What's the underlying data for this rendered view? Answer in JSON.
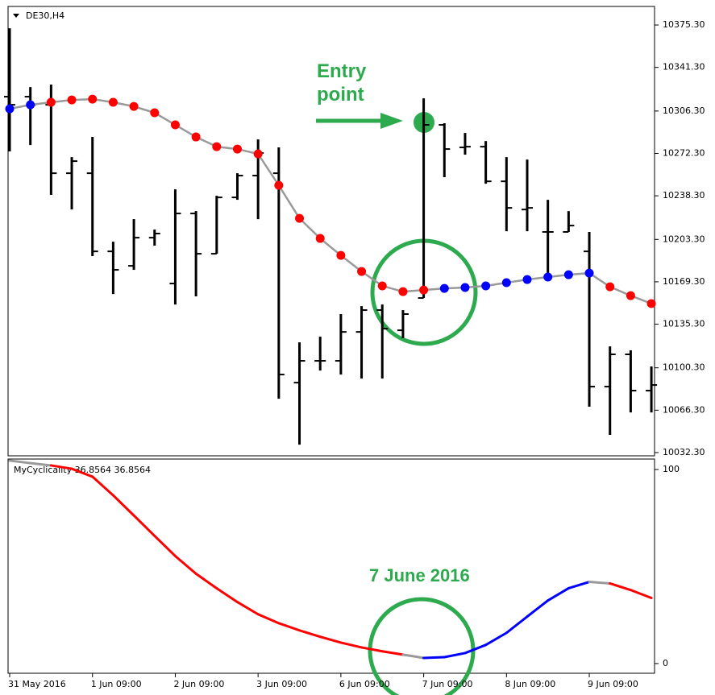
{
  "chart_data": [
    {
      "type": "ohlc",
      "title": "DE30,H4",
      "annotation": "Entry point",
      "open": [
        10317.8,
        10317.8,
        10311.3,
        10256.4,
        10256.4,
        10193.7,
        10182.1,
        10204.7,
        10167.9,
        10224.1,
        10191.8,
        10237.0,
        10254.5,
        10256.4,
        10088.4,
        10105.9,
        10105.9,
        10129.1,
        10146.6,
        10130.4,
        10156.3,
        10295.2,
        10277.1,
        10277.7,
        10249.9,
        10227.3,
        10209.3,
        10209.3,
        10193.7,
        10085.2,
        10111.1,
        10082.0
      ],
      "high": [
        10372.7,
        10325.5,
        10327.5,
        10269.3,
        10285.5,
        10201.5,
        10219.6,
        10211.2,
        10243.5,
        10226.0,
        10238.3,
        10256.4,
        10283.5,
        10277.1,
        10120.7,
        10125.3,
        10143.4,
        10149.8,
        10151.1,
        10146.6,
        10316.5,
        10296.5,
        10288.7,
        10282.2,
        10269.3,
        10267.4,
        10235.1,
        10226.0,
        10209.3,
        10117.5,
        10114.3,
        10101.4
      ],
      "low": [
        10273.9,
        10279.0,
        10239.0,
        10227.3,
        10189.9,
        10159.5,
        10178.9,
        10198.3,
        10151.1,
        10157.6,
        10191.8,
        10235.1,
        10219.6,
        10075.5,
        10038.7,
        10098.1,
        10094.9,
        10091.7,
        10091.7,
        10124.0,
        10156.3,
        10253.2,
        10271.3,
        10248.0,
        10209.9,
        10209.9,
        10174.4,
        10209.3,
        10069.1,
        10046.5,
        10064.5,
        10064.5
      ],
      "close": [
        10311.3,
        10311.3,
        10256.4,
        10266.1,
        10193.7,
        10178.9,
        10204.7,
        10208.0,
        10224.1,
        10191.8,
        10237.0,
        10254.5,
        10272.6,
        10094.9,
        10105.9,
        10105.9,
        10129.1,
        10146.6,
        10131.7,
        10143.4,
        10295.2,
        10275.8,
        10277.7,
        10249.9,
        10228.6,
        10228.6,
        10209.3,
        10214.4,
        10085.2,
        10111.1,
        10082.0,
        10086.5
      ],
      "line": {
        "color": "#999999",
        "values": [
          10308.1,
          10311.3,
          10313.3,
          10315.2,
          10315.8,
          10313.3,
          10310.0,
          10304.9,
          10295.2,
          10285.5,
          10277.7,
          10275.8,
          10271.9,
          10246.7,
          10220.2,
          10204.1,
          10190.5,
          10177.6,
          10166.0,
          10161.4,
          10162.7,
          10164.0,
          10164.7,
          10166.0,
          10168.6,
          10171.1,
          10173.1,
          10175.0,
          10176.3,
          10165.3,
          10158.2,
          10151.8
        ],
        "colors": [
          "#0000ff",
          "#0000ff",
          "#ff0000",
          "#ff0000",
          "#ff0000",
          "#ff0000",
          "#ff0000",
          "#ff0000",
          "#ff0000",
          "#ff0000",
          "#ff0000",
          "#ff0000",
          "#ff0000",
          "#ff0000",
          "#ff0000",
          "#ff0000",
          "#ff0000",
          "#ff0000",
          "#ff0000",
          "#ff0000",
          "#ff0000",
          "#0000ff",
          "#0000ff",
          "#0000ff",
          "#0000ff",
          "#0000ff",
          "#0000ff",
          "#0000ff",
          "#0000ff",
          "#ff0000",
          "#ff0000",
          "#ff0000"
        ]
      },
      "ylim": [
        10029.7,
        10390.2
      ],
      "yticks": [
        {
          "value": 10375.3,
          "label": "10375.30"
        },
        {
          "value": 10341.3,
          "label": "10341.30"
        },
        {
          "value": 10306.3,
          "label": "10306.30"
        },
        {
          "value": 10272.3,
          "label": "10272.30"
        },
        {
          "value": 10238.3,
          "label": "10238.30"
        },
        {
          "value": 10203.3,
          "label": "10203.30"
        },
        {
          "value": 10169.3,
          "label": "10169.30"
        },
        {
          "value": 10135.3,
          "label": "10135.30"
        },
        {
          "value": 10100.3,
          "label": "10100.30"
        },
        {
          "value": 10066.3,
          "label": "10066.30"
        },
        {
          "value": 10032.3,
          "label": "10032.30"
        }
      ]
    },
    {
      "type": "line",
      "title": "MyCyclicality 36.8564 36.8564",
      "annotation": "7 June 2016",
      "categories": [
        "31 May 2016",
        null,
        null,
        null,
        "1 Jun 09:00",
        null,
        null,
        null,
        "2 Jun 09:00",
        null,
        null,
        null,
        "3 Jun 09:00",
        null,
        null,
        null,
        "6 Jun 09:00",
        null,
        null,
        null,
        "7 Jun 09:00",
        null,
        null,
        null,
        "8 Jun 09:00",
        null,
        null,
        null,
        "9 Jun 09:00",
        null,
        null,
        null
      ],
      "values": [
        104.6,
        103.3,
        102.1,
        100.4,
        96.3,
        86.7,
        76.3,
        65.8,
        55.4,
        46.3,
        38.8,
        31.7,
        25.4,
        20.8,
        17.1,
        13.8,
        10.8,
        8.3,
        6.3,
        4.6,
        2.9,
        3.3,
        5.4,
        9.6,
        15.8,
        24.2,
        32.5,
        38.8,
        42.1,
        41.3,
        37.9,
        33.8
      ],
      "colors": [
        "#999999",
        "#999999",
        "#ff0000",
        "#ff0000",
        "#ff0000",
        "#ff0000",
        "#ff0000",
        "#ff0000",
        "#ff0000",
        "#ff0000",
        "#ff0000",
        "#ff0000",
        "#ff0000",
        "#ff0000",
        "#ff0000",
        "#ff0000",
        "#ff0000",
        "#ff0000",
        "#ff0000",
        "#999999",
        "#0000ff",
        "#0000ff",
        "#0000ff",
        "#0000ff",
        "#0000ff",
        "#0000ff",
        "#0000ff",
        "#0000ff",
        "#999999",
        "#ff0000",
        "#ff0000",
        "#ff0000"
      ],
      "ylim": [
        -5,
        105.4
      ],
      "yticks": [
        0,
        100
      ]
    }
  ]
}
